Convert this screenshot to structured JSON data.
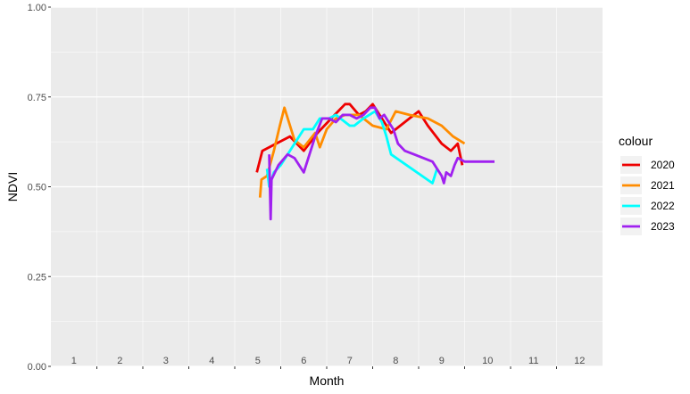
{
  "chart_data": {
    "type": "line",
    "title": "",
    "xlabel": "Month",
    "ylabel": "NDVI",
    "xlim": [
      0.5,
      12.5
    ],
    "ylim": [
      0,
      1
    ],
    "x_ticks": [
      1,
      2,
      3,
      4,
      5,
      6,
      7,
      8,
      9,
      10,
      11,
      12
    ],
    "x_tick_labels": [
      "1",
      "2",
      "3",
      "4",
      "5",
      "6",
      "7",
      "8",
      "9",
      "10",
      "11",
      "12"
    ],
    "y_ticks": [
      0,
      0.25,
      0.5,
      0.75,
      1
    ],
    "y_tick_labels": [
      "0.00",
      "0.25",
      "0.50",
      "0.75",
      "1.00"
    ],
    "grid": true,
    "background": "#ebebeb",
    "legend": {
      "title": "colour",
      "position": "right"
    },
    "series": [
      {
        "name": "2020",
        "color": "#ee0000",
        "x": [
          4.98,
          5.1,
          5.4,
          5.7,
          6.0,
          6.3,
          6.6,
          6.9,
          7.0,
          7.2,
          7.35,
          7.5,
          7.7,
          7.9,
          8.1,
          8.3,
          8.5,
          8.7,
          9.0,
          9.2,
          9.35,
          9.45
        ],
        "y": [
          0.54,
          0.6,
          0.62,
          0.64,
          0.6,
          0.65,
          0.69,
          0.73,
          0.73,
          0.7,
          0.71,
          0.73,
          0.69,
          0.65,
          0.67,
          0.69,
          0.71,
          0.67,
          0.62,
          0.6,
          0.62,
          0.56
        ]
      },
      {
        "name": "2021",
        "color": "#ff8c00",
        "x": [
          5.05,
          5.08,
          5.2,
          5.35,
          5.48,
          5.58,
          5.8,
          6.0,
          6.25,
          6.35,
          6.5,
          6.7,
          6.9,
          7.2,
          7.5,
          7.8,
          8.0,
          8.3,
          8.7,
          9.0,
          9.25,
          9.5
        ],
        "y": [
          0.47,
          0.52,
          0.53,
          0.6,
          0.67,
          0.72,
          0.63,
          0.61,
          0.65,
          0.61,
          0.66,
          0.69,
          0.7,
          0.7,
          0.67,
          0.66,
          0.71,
          0.7,
          0.69,
          0.67,
          0.64,
          0.62
        ]
      },
      {
        "name": "2022",
        "color": "#00ffff",
        "x": [
          5.2,
          5.25,
          5.35,
          5.5,
          5.7,
          5.85,
          6.0,
          6.2,
          6.35,
          6.55,
          6.7,
          7.0,
          7.1,
          7.3,
          7.55,
          7.7,
          7.8,
          7.9,
          8.8,
          8.9
        ],
        "y": [
          0.55,
          0.5,
          0.54,
          0.56,
          0.6,
          0.63,
          0.66,
          0.66,
          0.69,
          0.69,
          0.7,
          0.67,
          0.67,
          0.69,
          0.71,
          0.68,
          0.64,
          0.59,
          0.51,
          0.55
        ]
      },
      {
        "name": "2023",
        "color": "#a020f0",
        "x": [
          5.25,
          5.28,
          5.3,
          5.45,
          5.65,
          5.8,
          6.0,
          6.25,
          6.4,
          6.55,
          6.7,
          6.85,
          7.0,
          7.15,
          7.3,
          7.45,
          7.55,
          7.65,
          7.75,
          7.85,
          7.95,
          8.05,
          8.2,
          8.4,
          8.8,
          8.9,
          9.0,
          9.05,
          9.1,
          9.2,
          9.28,
          9.35,
          9.5,
          9.7,
          10.0,
          10.15
        ],
        "y": [
          0.59,
          0.41,
          0.52,
          0.56,
          0.59,
          0.58,
          0.54,
          0.64,
          0.69,
          0.69,
          0.68,
          0.7,
          0.7,
          0.69,
          0.7,
          0.72,
          0.72,
          0.69,
          0.7,
          0.68,
          0.66,
          0.62,
          0.6,
          0.59,
          0.57,
          0.55,
          0.53,
          0.51,
          0.54,
          0.53,
          0.56,
          0.58,
          0.57,
          0.57,
          0.57,
          0.57
        ]
      }
    ]
  }
}
